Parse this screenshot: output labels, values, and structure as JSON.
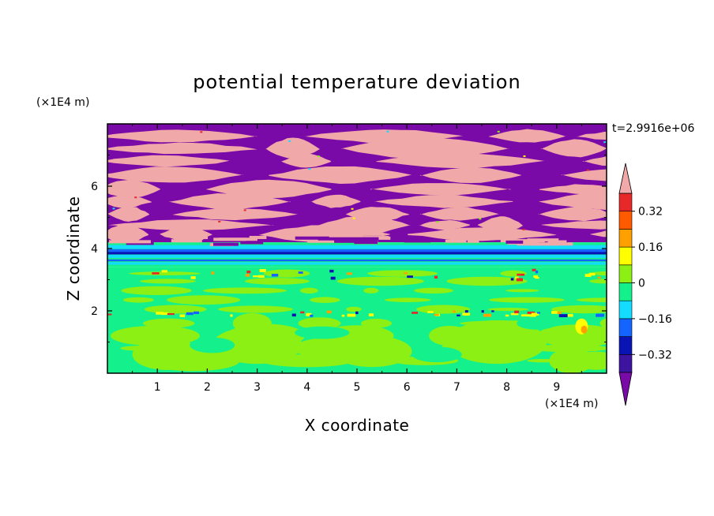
{
  "chart_data": {
    "type": "heatmap",
    "title": "potential temperature deviation",
    "xlabel": "X coordinate",
    "ylabel": "Z coordinate",
    "x_unit": "(×1E4 m)",
    "y_unit": "(×1E4 m)",
    "time_label": "t=2.9916e+06",
    "xlim": [
      0,
      10
    ],
    "ylim": [
      0,
      8
    ],
    "x_ticks": [
      "1",
      "2",
      "3",
      "4",
      "5",
      "6",
      "7",
      "8",
      "9"
    ],
    "y_ticks": [
      "2",
      "4",
      "6"
    ],
    "colorbar": {
      "levels": [
        -0.4,
        -0.32,
        -0.24,
        -0.16,
        -0.08,
        0,
        0.08,
        0.16,
        0.24,
        0.32,
        0.4
      ],
      "labels": [
        "0.32",
        "0.16",
        "0",
        "−0.16",
        "−0.32"
      ],
      "label_values": [
        0.32,
        0.16,
        0,
        -0.16,
        -0.32
      ],
      "colors": [
        "#7a0aa8",
        "#3c14a0",
        "#0a14b4",
        "#1464ff",
        "#14dcff",
        "#14f08c",
        "#8cf014",
        "#ffff00",
        "#ffa000",
        "#ff5a00",
        "#e62828",
        "#f0a8a8"
      ],
      "extend": "both"
    },
    "layers": [
      {
        "z_range": [
          4.2,
          8.0
        ],
        "description_colors": [
          "#7a0aa8",
          "#f0a8a8"
        ]
      },
      {
        "z_range": [
          3.4,
          4.2
        ],
        "description_colors": [
          "#14dcff",
          "#1464ff",
          "#0a14b4"
        ]
      },
      {
        "z_range": [
          0.0,
          3.4
        ],
        "description_colors": [
          "#14f08c",
          "#8cf014"
        ]
      }
    ]
  }
}
